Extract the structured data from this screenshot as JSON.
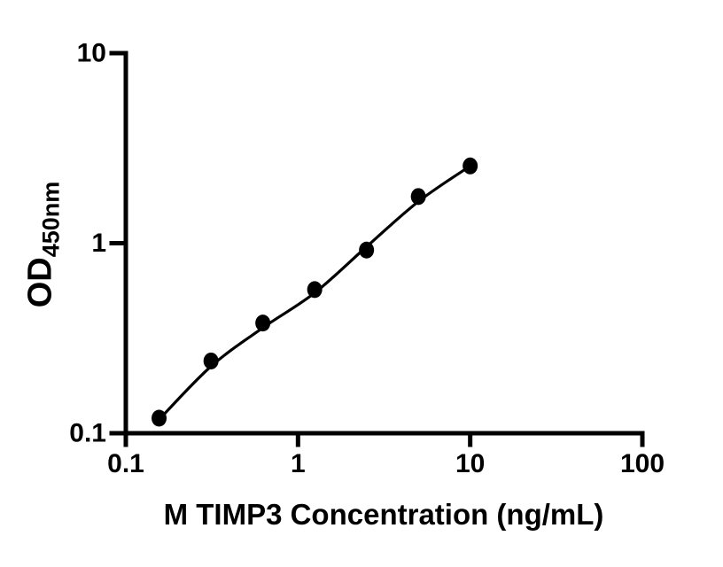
{
  "figure": {
    "background_color": "#ffffff",
    "axis_color": "#000000",
    "text_color": "#000000"
  },
  "chart_data": {
    "type": "scatter",
    "title": "",
    "xlabel": "M TIMP3 Concentration (ng/mL)",
    "ylabel": "OD",
    "ylabel_sub": "450nm",
    "xscale": "log",
    "yscale": "log",
    "xlim": [
      0.1,
      100
    ],
    "ylim": [
      0.1,
      10
    ],
    "x_ticks": {
      "values": [
        0.1,
        1,
        10,
        100
      ],
      "labels": [
        "0.1",
        "1",
        "10",
        "100"
      ]
    },
    "y_ticks": {
      "values": [
        0.1,
        1,
        10
      ],
      "labels": [
        "0.1",
        "1",
        "10"
      ]
    },
    "grid": false,
    "legend": false,
    "series": [
      {
        "name": "M TIMP3 standard points",
        "marker": "filled-circle",
        "color": "#000000",
        "x": [
          0.156,
          0.3125,
          0.625,
          1.25,
          2.5,
          5,
          10
        ],
        "y": [
          0.12,
          0.24,
          0.38,
          0.57,
          0.92,
          1.76,
          2.55
        ]
      }
    ],
    "fit_curve": {
      "name": "standard curve fit line",
      "color": "#000000",
      "x": [
        0.156,
        0.3125,
        0.625,
        1.25,
        2.5,
        5,
        10
      ],
      "y": [
        0.118,
        0.225,
        0.359,
        0.548,
        0.958,
        1.657,
        2.55
      ]
    }
  }
}
